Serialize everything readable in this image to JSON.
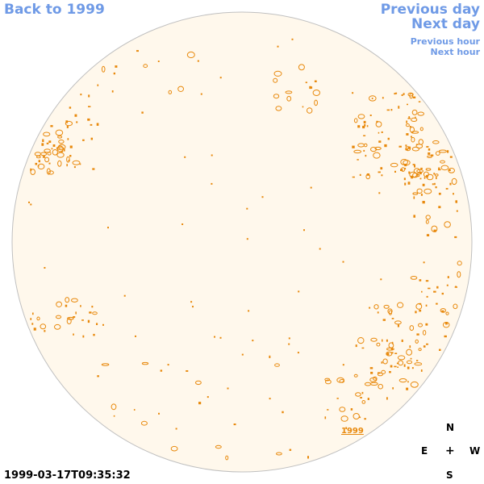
{
  "nav": {
    "back_label": "Back to 1999",
    "previous_day_label": "Previous day",
    "next_day_label": "Next day",
    "previous_hour_label": "Previous hour",
    "next_hour_label": "Next hour"
  },
  "disk_year_label": "1999",
  "timestamp": "1999-03-17T09:35:32",
  "compass": {
    "north": "N",
    "east": "E",
    "center": "+",
    "west": "W",
    "south": "S"
  },
  "colors": {
    "link": "#6f9ae6",
    "disk_fill": "#fff8ec",
    "disk_outline": "#c0c0c0",
    "feature": "#e8890c"
  }
}
